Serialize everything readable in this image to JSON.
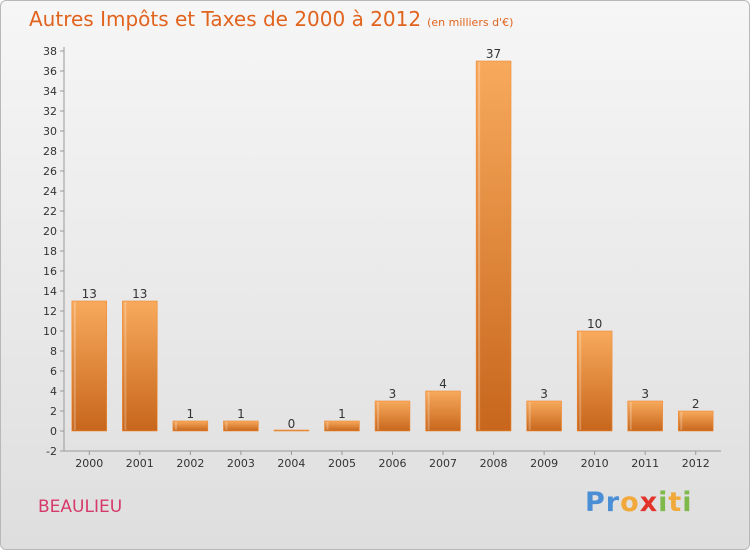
{
  "title": "Autres Impôts et Taxes de 2000 à 2012",
  "unit": "(en milliers d'€)",
  "place": "BEAULIEU",
  "logo": {
    "name": "Proxiti",
    "letters": [
      "P",
      "r",
      "o",
      "x",
      "i",
      "t",
      "i"
    ],
    "colors": [
      "#4a8fd6",
      "#4a8fd6",
      "#f2a93b",
      "#e2332b",
      "#7fb94a",
      "#f2a93b",
      "#7fb94a"
    ]
  },
  "colors": {
    "bar": "#ef8a35",
    "bar_light": "#f8aa5c",
    "bar_dark": "#c7661c",
    "title": "#e0641e",
    "place": "#d63a6a"
  },
  "chart_data": {
    "type": "bar",
    "categories": [
      "2000",
      "2001",
      "2002",
      "2003",
      "2004",
      "2005",
      "2006",
      "2007",
      "2008",
      "2009",
      "2010",
      "2011",
      "2012"
    ],
    "values": [
      13,
      13,
      1,
      1,
      0,
      1,
      3,
      4,
      37,
      3,
      10,
      3,
      2
    ],
    "data_labels": [
      "13",
      "13",
      "1",
      "1",
      "0",
      "1",
      "3",
      "4",
      "37",
      "3",
      "10",
      "3",
      "2"
    ],
    "ylim": [
      -2,
      38
    ],
    "yticks": [
      -2,
      0,
      2,
      4,
      6,
      8,
      10,
      12,
      14,
      16,
      18,
      20,
      22,
      24,
      26,
      28,
      30,
      32,
      34,
      36,
      38
    ],
    "grid": false,
    "legend": "none"
  }
}
